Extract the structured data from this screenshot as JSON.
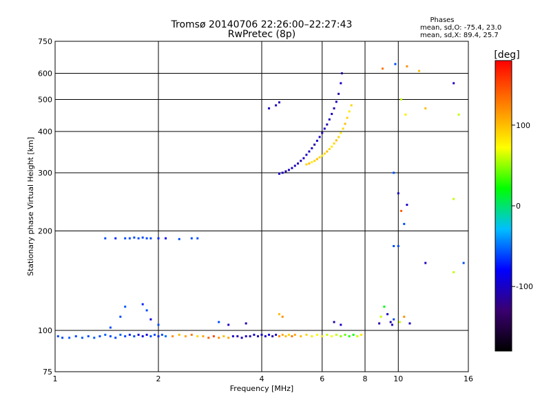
{
  "chart_data": {
    "type": "scatter",
    "title": "Tromsø 20140706 22:26:00–22:27:43",
    "subtitle": "RwPretec (8p)",
    "xlabel": "Frequency [MHz]",
    "ylabel": "Stationary phase Virtual Height [km]",
    "x_scale": "log",
    "y_scale": "log",
    "xlim": [
      1,
      16
    ],
    "ylim": [
      75,
      750
    ],
    "x_ticks": [
      1,
      2,
      4,
      6,
      8,
      10,
      16
    ],
    "y_ticks": [
      75,
      100,
      200,
      300,
      400,
      500,
      600,
      750
    ],
    "grid": true,
    "phase_stats": {
      "heading": "Phases",
      "line_o": "mean, sd,O: -75.4, 23.0",
      "line_x": "mean, sd,X:  89.4, 25.7"
    },
    "colorbar": {
      "label": "[deg]",
      "range": [
        -180,
        180
      ],
      "ticks": [
        -100,
        0,
        100
      ],
      "colors": [
        "#000000",
        "#3a0070",
        "#0000ff",
        "#00bfff",
        "#00ff00",
        "#ffff00",
        "#ff8000",
        "#ff0000"
      ]
    },
    "series": [
      {
        "note": "ground-near trace ~95 km",
        "points": [
          [
            1.02,
            96,
            -60
          ],
          [
            1.05,
            95,
            -60
          ],
          [
            1.1,
            95,
            -55
          ],
          [
            1.15,
            96,
            -60
          ],
          [
            1.2,
            95,
            -55
          ],
          [
            1.25,
            96,
            -60
          ],
          [
            1.3,
            95,
            -55
          ],
          [
            1.35,
            96,
            -60
          ],
          [
            1.4,
            97,
            -55
          ],
          [
            1.45,
            96,
            -60
          ],
          [
            1.5,
            95,
            -60
          ],
          [
            1.55,
            97,
            -55
          ],
          [
            1.6,
            96,
            -60
          ],
          [
            1.65,
            97,
            -70
          ],
          [
            1.7,
            96,
            -60
          ],
          [
            1.75,
            97,
            -95
          ],
          [
            1.8,
            96,
            -90
          ],
          [
            1.85,
            97,
            -90
          ],
          [
            1.9,
            96,
            -60
          ],
          [
            1.95,
            97,
            -60
          ],
          [
            2.0,
            96,
            -70
          ],
          [
            2.05,
            97,
            -60
          ],
          [
            2.1,
            96,
            -50
          ],
          [
            2.2,
            96,
            120
          ],
          [
            2.3,
            97,
            100
          ],
          [
            2.4,
            96,
            110
          ],
          [
            2.5,
            97,
            130
          ],
          [
            2.6,
            96,
            90
          ],
          [
            2.7,
            96,
            110
          ],
          [
            2.8,
            95,
            140
          ],
          [
            2.9,
            96,
            150
          ],
          [
            3.0,
            95,
            120
          ],
          [
            3.1,
            96,
            100
          ],
          [
            3.2,
            95,
            110
          ],
          [
            3.3,
            96,
            -100
          ],
          [
            3.4,
            96,
            -110
          ],
          [
            3.5,
            95,
            -105
          ],
          [
            3.6,
            96,
            -100
          ],
          [
            3.7,
            96,
            -110
          ],
          [
            3.8,
            97,
            -100
          ],
          [
            3.9,
            96,
            -105
          ],
          [
            4.0,
            97,
            -95
          ],
          [
            4.1,
            96,
            -100
          ],
          [
            4.2,
            97,
            -90
          ],
          [
            4.3,
            96,
            -110
          ],
          [
            4.4,
            97,
            -100
          ],
          [
            4.5,
            96,
            120
          ],
          [
            4.6,
            97,
            110
          ],
          [
            4.7,
            96,
            100
          ],
          [
            4.8,
            97,
            90
          ],
          [
            4.9,
            96,
            130
          ],
          [
            5.0,
            97,
            110
          ],
          [
            5.2,
            96,
            100
          ],
          [
            5.4,
            97,
            90
          ],
          [
            5.6,
            96,
            80
          ],
          [
            5.8,
            97,
            70
          ],
          [
            6.0,
            96,
            80
          ],
          [
            6.2,
            97,
            60
          ],
          [
            6.4,
            96,
            70
          ],
          [
            6.6,
            97,
            60
          ],
          [
            6.8,
            96,
            50
          ],
          [
            7.0,
            97,
            40
          ],
          [
            7.2,
            96,
            30
          ],
          [
            7.4,
            97,
            20
          ],
          [
            7.6,
            96,
            60
          ],
          [
            7.8,
            97,
            80
          ]
        ]
      },
      {
        "note": "sporadic echoes ~105-125 km",
        "points": [
          [
            1.45,
            102,
            -60
          ],
          [
            1.55,
            110,
            -60
          ],
          [
            1.6,
            118,
            -55
          ],
          [
            1.8,
            120,
            -70
          ],
          [
            1.85,
            115,
            -60
          ],
          [
            1.9,
            108,
            -90
          ],
          [
            2.0,
            104,
            -60
          ],
          [
            3.0,
            106,
            -60
          ],
          [
            3.2,
            104,
            -100
          ],
          [
            3.6,
            105,
            -110
          ],
          [
            4.5,
            112,
            100
          ],
          [
            4.6,
            110,
            120
          ],
          [
            6.5,
            106,
            -110
          ],
          [
            6.8,
            104,
            -100
          ],
          [
            8.8,
            105,
            -110
          ],
          [
            8.9,
            110,
            60
          ],
          [
            9.1,
            118,
            20
          ],
          [
            9.3,
            112,
            -100
          ],
          [
            9.5,
            106,
            -110
          ],
          [
            9.6,
            104,
            -100
          ],
          [
            9.7,
            108,
            -60
          ],
          [
            10.1,
            106,
            60
          ],
          [
            10.4,
            110,
            120
          ],
          [
            10.8,
            105,
            -100
          ]
        ]
      },
      {
        "note": "constant echo ~190 km",
        "points": [
          [
            1.4,
            190,
            -60
          ],
          [
            1.5,
            190,
            -70
          ],
          [
            1.6,
            190,
            -60
          ],
          [
            1.65,
            190,
            -60
          ],
          [
            1.7,
            191,
            -60
          ],
          [
            1.75,
            190,
            -60
          ],
          [
            1.8,
            191,
            -60
          ],
          [
            1.85,
            190,
            -60
          ],
          [
            1.9,
            190,
            -60
          ],
          [
            2.0,
            190,
            -70
          ],
          [
            2.1,
            190,
            -80
          ],
          [
            2.3,
            189,
            -60
          ],
          [
            2.5,
            190,
            -60
          ],
          [
            2.6,
            190,
            -60
          ]
        ]
      },
      {
        "note": "O-mode F-layer trace",
        "points": [
          [
            4.5,
            298,
            -100
          ],
          [
            4.6,
            300,
            -100
          ],
          [
            4.7,
            303,
            -110
          ],
          [
            4.8,
            306,
            -100
          ],
          [
            4.9,
            310,
            -100
          ],
          [
            5.0,
            315,
            -105
          ],
          [
            5.1,
            320,
            -100
          ],
          [
            5.2,
            326,
            -110
          ],
          [
            5.3,
            332,
            -100
          ],
          [
            5.4,
            340,
            -100
          ],
          [
            5.5,
            348,
            -105
          ],
          [
            5.6,
            356,
            -100
          ],
          [
            5.7,
            365,
            -110
          ],
          [
            5.8,
            375,
            -100
          ],
          [
            5.9,
            385,
            -100
          ],
          [
            6.0,
            396,
            -105
          ],
          [
            6.1,
            408,
            -100
          ],
          [
            6.2,
            420,
            -110
          ],
          [
            6.3,
            435,
            -100
          ],
          [
            6.4,
            452,
            -100
          ],
          [
            6.5,
            470,
            -105
          ],
          [
            6.6,
            492,
            -100
          ],
          [
            6.7,
            520,
            -110
          ],
          [
            6.8,
            560,
            -100
          ],
          [
            6.85,
            600,
            -110
          ],
          [
            4.2,
            470,
            -100
          ],
          [
            4.4,
            480,
            -100
          ],
          [
            4.5,
            490,
            -110
          ]
        ]
      },
      {
        "note": "X-mode F-layer trace",
        "points": [
          [
            5.4,
            318,
            90
          ],
          [
            5.5,
            320,
            100
          ],
          [
            5.6,
            323,
            80
          ],
          [
            5.7,
            326,
            90
          ],
          [
            5.8,
            330,
            100
          ],
          [
            5.9,
            334,
            90
          ],
          [
            6.0,
            338,
            80
          ],
          [
            6.1,
            343,
            90
          ],
          [
            6.2,
            348,
            100
          ],
          [
            6.3,
            354,
            90
          ],
          [
            6.4,
            360,
            80
          ],
          [
            6.5,
            368,
            90
          ],
          [
            6.6,
            376,
            100
          ],
          [
            6.7,
            385,
            90
          ],
          [
            6.8,
            396,
            80
          ],
          [
            6.9,
            408,
            90
          ],
          [
            7.0,
            422,
            100
          ],
          [
            7.1,
            440,
            90
          ],
          [
            7.2,
            460,
            80
          ],
          [
            7.3,
            480,
            90
          ]
        ]
      },
      {
        "note": "scattered high-frequency echoes",
        "points": [
          [
            9.0,
            620,
            130
          ],
          [
            9.8,
            640,
            -60
          ],
          [
            10.2,
            500,
            60
          ],
          [
            10.5,
            450,
            80
          ],
          [
            10.6,
            630,
            120
          ],
          [
            11.5,
            610,
            100
          ],
          [
            12.0,
            470,
            100
          ],
          [
            14.5,
            560,
            -100
          ],
          [
            15.0,
            450,
            60
          ],
          [
            9.7,
            300,
            -60
          ],
          [
            10.0,
            260,
            -100
          ],
          [
            10.2,
            230,
            140
          ],
          [
            10.4,
            210,
            -60
          ],
          [
            10.6,
            240,
            -100
          ],
          [
            14.5,
            250,
            60
          ],
          [
            10.0,
            180,
            -60
          ],
          [
            9.7,
            180,
            -60
          ],
          [
            12.0,
            160,
            -100
          ],
          [
            14.5,
            150,
            60
          ],
          [
            15.5,
            160,
            -60
          ]
        ]
      }
    ]
  }
}
